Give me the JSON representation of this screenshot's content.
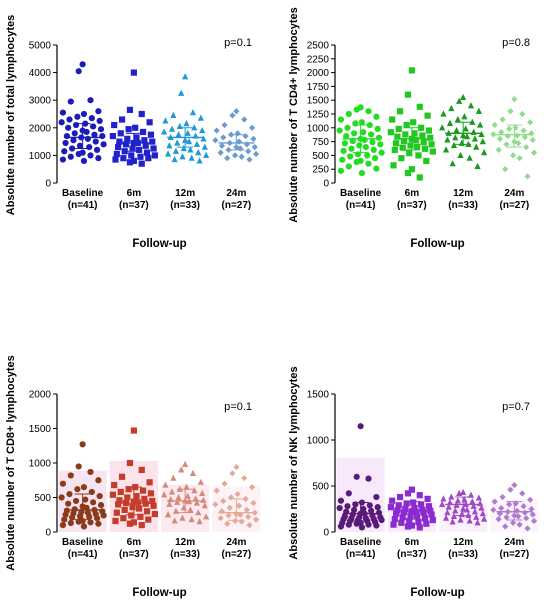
{
  "chart_data": [
    {
      "type": "scatter",
      "panel": "total",
      "ylabel": "Absolute number of total lymphocytes",
      "xlabel": "Follow-up",
      "pvalue": "p=0.1",
      "ylim": [
        0,
        5000
      ],
      "yticks": [
        0,
        1000,
        2000,
        3000,
        4000,
        5000
      ],
      "categories": [
        "Baseline\n(n=41)",
        "6m\n(n=37)",
        "12m\n(n=33)",
        "24m\n(n=27)"
      ],
      "markers": [
        "circle",
        "square",
        "triangle",
        "diamond"
      ],
      "colors": [
        "#1c1cb8",
        "#2222cc",
        "#1f9ad6",
        "#6a9cd0"
      ],
      "medians": [
        1650,
        1450,
        1650,
        1450
      ],
      "iqr": [
        [
          1250,
          2150
        ],
        [
          1150,
          1800
        ],
        [
          1300,
          2000
        ],
        [
          1200,
          1750
        ]
      ],
      "points": [
        [
          4300,
          4050,
          3000,
          2950,
          2600,
          2550,
          2500,
          2400,
          2350,
          2300,
          2250,
          2200,
          2150,
          2100,
          2050,
          2000,
          1950,
          1900,
          1850,
          1800,
          1750,
          1700,
          1700,
          1650,
          1600,
          1550,
          1500,
          1450,
          1400,
          1350,
          1300,
          1250,
          1200,
          1150,
          1100,
          1050,
          1000,
          950,
          900,
          850,
          800
        ],
        [
          4000,
          2650,
          2500,
          2300,
          2200,
          2100,
          2000,
          1950,
          1850,
          1800,
          1750,
          1700,
          1650,
          1600,
          1550,
          1500,
          1500,
          1450,
          1450,
          1400,
          1350,
          1300,
          1250,
          1250,
          1200,
          1150,
          1100,
          1050,
          1000,
          1000,
          950,
          900,
          900,
          850,
          800,
          750,
          700
        ],
        [
          3850,
          3250,
          2550,
          2450,
          2350,
          2250,
          2150,
          2050,
          2000,
          1950,
          1900,
          1850,
          1800,
          1750,
          1700,
          1650,
          1600,
          1550,
          1500,
          1450,
          1400,
          1350,
          1300,
          1250,
          1200,
          1150,
          1100,
          1050,
          1000,
          950,
          900,
          850,
          800
        ],
        [
          2600,
          2450,
          2300,
          2100,
          2000,
          1900,
          1800,
          1750,
          1700,
          1650,
          1600,
          1550,
          1500,
          1450,
          1400,
          1350,
          1300,
          1300,
          1250,
          1200,
          1150,
          1100,
          1050,
          1000,
          950,
          900,
          850
        ]
      ]
    },
    {
      "type": "scatter",
      "panel": "cd4",
      "ylabel": "Absolute number of T CD4+ lymphocytes",
      "xlabel": "Follow-up",
      "pvalue": "p=0.8",
      "ylim": [
        0,
        2500
      ],
      "yticks": [
        0,
        250,
        500,
        750,
        1000,
        1250,
        1500,
        1750,
        2000,
        2250,
        2500
      ],
      "categories": [
        "Baseline\n(n=41)",
        "6m\n(n=37)",
        "12m\n(n=33)",
        "24m\n(n=27)"
      ],
      "markers": [
        "circle",
        "square",
        "triangle",
        "diamond"
      ],
      "colors": [
        "#22dd22",
        "#22c822",
        "#1a9a1a",
        "#8fdc8f"
      ],
      "medians": [
        800,
        800,
        900,
        875
      ],
      "iqr": [
        [
          550,
          1050
        ],
        [
          600,
          1000
        ],
        [
          700,
          1100
        ],
        [
          650,
          1050
        ]
      ],
      "points": [
        [
          1370,
          1330,
          1300,
          1250,
          1200,
          1150,
          1100,
          1080,
          1050,
          1000,
          980,
          950,
          920,
          900,
          880,
          850,
          820,
          800,
          780,
          760,
          740,
          720,
          700,
          680,
          650,
          620,
          600,
          580,
          550,
          520,
          500,
          480,
          450,
          420,
          400,
          380,
          350,
          300,
          260,
          220,
          180
        ],
        [
          2040,
          1600,
          1380,
          1300,
          1220,
          1150,
          1100,
          1050,
          1000,
          980,
          950,
          920,
          900,
          880,
          860,
          840,
          820,
          800,
          780,
          760,
          740,
          720,
          700,
          680,
          660,
          640,
          620,
          600,
          570,
          540,
          500,
          450,
          400,
          320,
          250,
          180,
          100
        ],
        [
          1550,
          1480,
          1400,
          1350,
          1300,
          1250,
          1200,
          1150,
          1100,
          1080,
          1050,
          1000,
          980,
          950,
          920,
          900,
          880,
          860,
          840,
          820,
          800,
          780,
          750,
          720,
          700,
          680,
          650,
          600,
          550,
          500,
          450,
          350,
          300
        ],
        [
          1520,
          1300,
          1250,
          1150,
          1100,
          1050,
          1000,
          980,
          950,
          920,
          900,
          880,
          860,
          850,
          830,
          800,
          780,
          750,
          720,
          700,
          650,
          600,
          550,
          500,
          450,
          250,
          120
        ]
      ]
    },
    {
      "type": "scatter",
      "panel": "cd8",
      "ylabel": "Absolute number of T CD8+ lymphocytes",
      "xlabel": "Follow-up",
      "pvalue": "p=0.1",
      "ylim": [
        0,
        2000
      ],
      "yticks": [
        0,
        500,
        1000,
        1500,
        2000
      ],
      "categories": [
        "Baseline\n(n=41)",
        "6m\n(n=37)",
        "12m\n(n=33)",
        "24m\n(n=27)"
      ],
      "markers": [
        "circle",
        "square",
        "triangle",
        "diamond"
      ],
      "colors": [
        "#8b3a1a",
        "#c43c2a",
        "#d88a7a",
        "#e6a898"
      ],
      "band_colors": [
        "#f5e0ef",
        "#fbdde6",
        "#fbe6ee",
        "#fdf0f4"
      ],
      "medians": [
        320,
        420,
        450,
        280
      ],
      "iqr": [
        [
          180,
          550
        ],
        [
          250,
          650
        ],
        [
          280,
          620
        ],
        [
          170,
          480
        ]
      ],
      "points": [
        [
          1270,
          950,
          870,
          820,
          750,
          700,
          650,
          620,
          580,
          550,
          520,
          500,
          470,
          450,
          430,
          410,
          390,
          370,
          350,
          330,
          320,
          310,
          300,
          290,
          280,
          270,
          260,
          250,
          240,
          230,
          220,
          210,
          200,
          180,
          160,
          150,
          140,
          130,
          120,
          100,
          80
        ],
        [
          1470,
          1000,
          900,
          800,
          720,
          680,
          650,
          620,
          600,
          580,
          560,
          540,
          520,
          500,
          480,
          460,
          450,
          440,
          430,
          420,
          410,
          400,
          380,
          360,
          340,
          320,
          300,
          280,
          260,
          240,
          220,
          200,
          180,
          160,
          140,
          120,
          100
        ],
        [
          980,
          900,
          850,
          780,
          720,
          680,
          650,
          620,
          600,
          580,
          560,
          540,
          520,
          500,
          480,
          470,
          460,
          450,
          440,
          430,
          420,
          400,
          380,
          350,
          320,
          300,
          280,
          250,
          220,
          200,
          180,
          160,
          150
        ],
        [
          940,
          850,
          780,
          700,
          650,
          600,
          550,
          500,
          480,
          450,
          420,
          400,
          380,
          350,
          320,
          300,
          280,
          260,
          250,
          240,
          220,
          200,
          180,
          160,
          150,
          120,
          100
        ]
      ]
    },
    {
      "type": "scatter",
      "panel": "nk",
      "ylabel": "Absolute number of NK lymphocytes",
      "xlabel": "Follow-up",
      "pvalue": "p=0.7",
      "ylim": [
        0,
        1500
      ],
      "yticks": [
        0,
        500,
        1000,
        1500
      ],
      "categories": [
        "Baseline\n(n=41)",
        "6m\n(n=37)",
        "12m\n(n=33)",
        "24m\n(n=27)"
      ],
      "markers": [
        "circle",
        "square",
        "triangle",
        "diamond"
      ],
      "colors": [
        "#5a1a7a",
        "#8a2ad0",
        "#a04ac8",
        "#b07ad0"
      ],
      "band_colors": [
        "#f6e4fa",
        "#f8e8fc",
        "#faeefc",
        "#fcf3fd"
      ],
      "medians": [
        200,
        230,
        300,
        220
      ],
      "iqr": [
        [
          120,
          320
        ],
        [
          140,
          330
        ],
        [
          180,
          380
        ],
        [
          130,
          330
        ]
      ],
      "points": [
        [
          1150,
          600,
          580,
          420,
          380,
          340,
          320,
          300,
          290,
          280,
          270,
          260,
          250,
          240,
          230,
          220,
          210,
          200,
          200,
          190,
          180,
          170,
          160,
          160,
          150,
          150,
          140,
          140,
          130,
          130,
          120,
          120,
          110,
          100,
          100,
          90,
          80,
          80,
          70,
          60,
          50
        ],
        [
          460,
          420,
          400,
          380,
          360,
          340,
          320,
          310,
          300,
          290,
          280,
          270,
          260,
          250,
          240,
          235,
          230,
          225,
          220,
          215,
          210,
          200,
          190,
          180,
          170,
          160,
          150,
          140,
          130,
          120,
          110,
          100,
          90,
          80,
          70,
          60,
          50
        ],
        [
          430,
          420,
          400,
          380,
          370,
          360,
          350,
          340,
          330,
          320,
          310,
          300,
          300,
          290,
          280,
          270,
          260,
          250,
          240,
          230,
          220,
          210,
          200,
          190,
          180,
          170,
          160,
          150,
          140,
          130,
          120,
          110,
          100
        ],
        [
          510,
          460,
          420,
          380,
          350,
          330,
          310,
          300,
          280,
          260,
          250,
          240,
          230,
          220,
          210,
          200,
          190,
          180,
          170,
          160,
          150,
          140,
          120,
          100,
          80,
          60,
          40
        ]
      ]
    }
  ]
}
